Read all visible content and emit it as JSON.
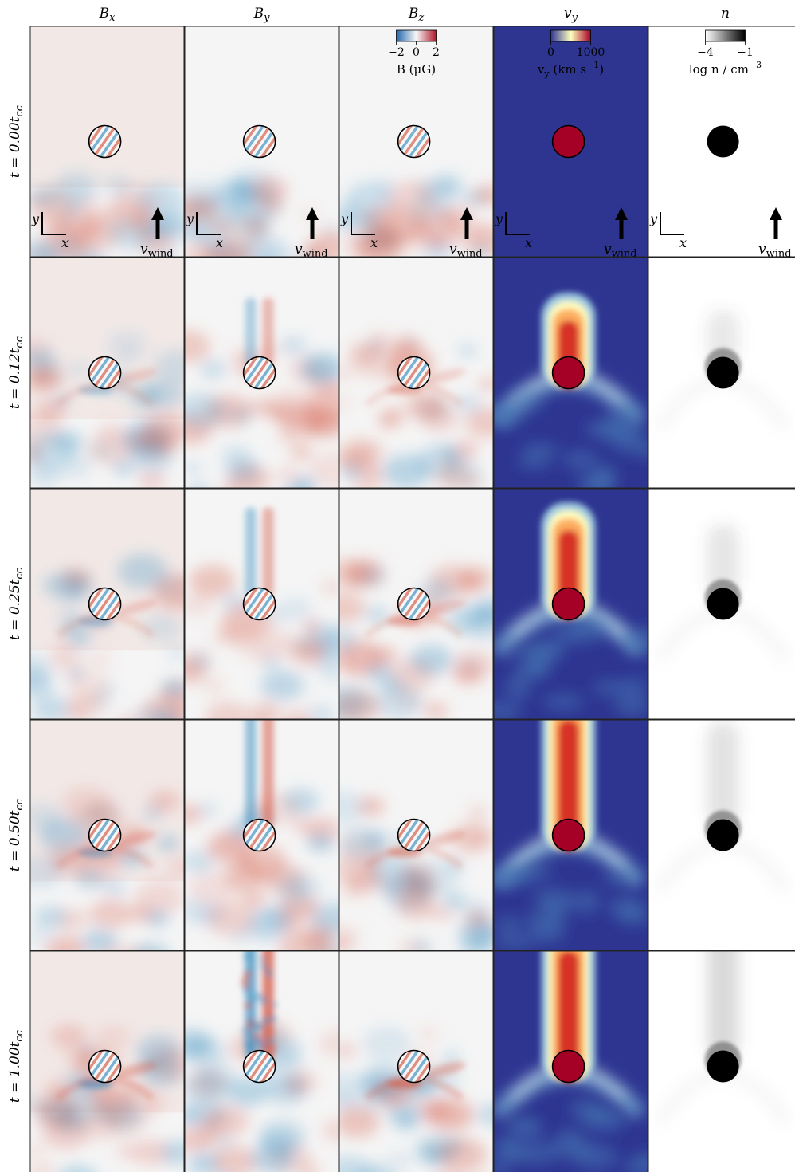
{
  "figure": {
    "columns": [
      {
        "id": "bx",
        "title_main": "B",
        "title_sub": "x",
        "colormap": "rdbu"
      },
      {
        "id": "by",
        "title_main": "B",
        "title_sub": "y",
        "colormap": "rdbu"
      },
      {
        "id": "bz",
        "title_main": "B",
        "title_sub": "z",
        "colormap": "rdbu"
      },
      {
        "id": "vy",
        "title_main": "v",
        "title_sub": "y",
        "colormap": "rdylbu"
      },
      {
        "id": "n",
        "title_main": "n",
        "title_sub": "",
        "colormap": "greys"
      }
    ],
    "rows": [
      {
        "label_prefix": "t = 0.00t",
        "label_sub": "cc",
        "time": 0.0
      },
      {
        "label_prefix": "t = 0.12t",
        "label_sub": "cc",
        "time": 0.12
      },
      {
        "label_prefix": "t = 0.25t",
        "label_sub": "cc",
        "time": 0.25
      },
      {
        "label_prefix": "t = 0.50t",
        "label_sub": "cc",
        "time": 0.5
      },
      {
        "label_prefix": "t = 1.00t",
        "label_sub": "cc",
        "time": 1.0
      }
    ],
    "colorbars": [
      {
        "column": "bz",
        "ticks": [
          "−2",
          "0",
          "2"
        ],
        "label_main": "B (μG)",
        "colors": [
          "#2166ac",
          "#f7f7f7",
          "#b2182b"
        ]
      },
      {
        "column": "vy",
        "ticks": [
          "0",
          "1000"
        ],
        "label_main": "v",
        "label_sub": "y",
        "label_rest": " (km s",
        "label_sup": "−1",
        "label_end": ")",
        "colors": [
          "#313695",
          "#ffffbf",
          "#a50026"
        ]
      },
      {
        "column": "n",
        "ticks": [
          "−4",
          "−1"
        ],
        "label_main": "log n / cm",
        "label_sup": "−3",
        "colors": [
          "#ffffff",
          "#000000"
        ]
      }
    ],
    "axes_indicator": {
      "x_label": "x",
      "y_label": "y"
    },
    "wind_label_main": "v",
    "wind_label_sub": "wind",
    "colors": {
      "red": "#d6604d",
      "blue": "#4393c3",
      "wind_background": "#2d3591",
      "cloud": "#a50026"
    }
  }
}
